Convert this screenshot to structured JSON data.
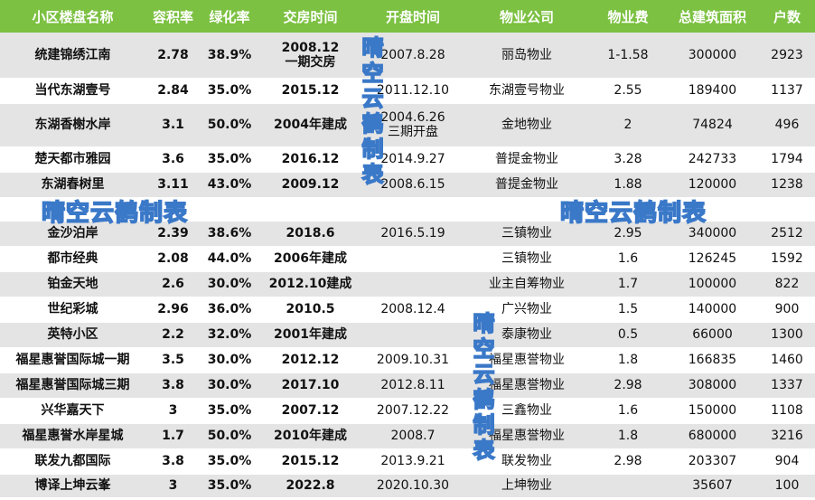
{
  "headers": [
    "小区楼盘名称",
    "容积率",
    "绿化率",
    "交房时间",
    "开盘时间",
    "物业公司",
    "物业费",
    "总建筑面积",
    "户数"
  ],
  "rows": [
    [
      "统建锦绣江南",
      "2.78",
      "38.9%",
      "2008.12\n一期交房",
      "2007.8.28",
      "丽岛物业",
      "1-1.58",
      "300000",
      "2923"
    ],
    [
      "当代东湖壹号",
      "2.84",
      "35.0%",
      "2015.12",
      "2011.12.10",
      "东湖壹号物业",
      "2.55",
      "189400",
      "1137"
    ],
    [
      "东湖香榭水岸",
      "3.1",
      "50.0%",
      "2004年建成",
      "2004.6.26\n三期开盘",
      "金地物业",
      "2",
      "74824",
      "496"
    ],
    [
      "楚天都市雅园",
      "3.6",
      "35.0%",
      "2016.12",
      "2014.9.27",
      "普提金物业",
      "3.28",
      "242733",
      "1794"
    ],
    [
      "东湖春树里",
      "3.11",
      "43.0%",
      "2009.12",
      "2008.6.15",
      "普提金物业",
      "1.88",
      "120000",
      "1238"
    ],
    [
      "",
      "",
      "",
      "",
      "",
      "",
      "",
      "",
      ""
    ],
    [
      "金沙泊岸",
      "2.39",
      "38.6%",
      "2018.6",
      "2016.5.19",
      "三镇物业",
      "2.95",
      "340000",
      "2512"
    ],
    [
      "都市经典",
      "2.08",
      "44.0%",
      "2006年建成",
      "",
      "三镇物业",
      "1.6",
      "126245",
      "1592"
    ],
    [
      "铂金天地",
      "2.6",
      "30.0%",
      "2012.10建成",
      "",
      "业主自筹物业",
      "1.7",
      "100000",
      "822"
    ],
    [
      "世纪彩城",
      "2.96",
      "36.0%",
      "2010.5",
      "2008.12.4",
      "广兴物业",
      "1.5",
      "140000",
      "900"
    ],
    [
      "英特小区",
      "2.2",
      "32.0%",
      "2001年建成",
      "",
      "泰康物业",
      "0.5",
      "66000",
      "1300"
    ],
    [
      "福星惠誉国际城一期",
      "3.5",
      "30.0%",
      "2012.12",
      "2009.10.31",
      "福星惠誉物业",
      "1.8",
      "166835",
      "1460"
    ],
    [
      "福星惠誉国际城三期",
      "3.8",
      "30.0%",
      "2017.10",
      "2012.8.11",
      "福星惠誉物业",
      "2.98",
      "308000",
      "1337"
    ],
    [
      "兴华嘉天下",
      "3",
      "35.0%",
      "2007.12",
      "2007.12.22",
      "三鑫物业",
      "1.6",
      "150000",
      "1108"
    ],
    [
      "福星惠誉水岸星城",
      "1.7",
      "50.0%",
      "2010年建成",
      "2008.7",
      "福星惠誉物业",
      "1.8",
      "680000",
      "3216"
    ],
    [
      "联发九都国际",
      "3.8",
      "35.0%",
      "2015.12",
      "2013.9.21",
      "联发物业",
      "2.98",
      "203307",
      "904"
    ],
    [
      "博译上坤云峯",
      "3",
      "35.0%",
      "2022.8",
      "2020.10.30",
      "上坤物业",
      "",
      "35607",
      "100"
    ]
  ],
  "watermark": "晴空云鹤制表",
  "colors": {
    "header_bg": "#7cc142",
    "header_text": "#ffffff",
    "row_alt": "#e4e4e4",
    "watermark_fill": "#c9ddf3",
    "watermark_stroke": "#3a78c8"
  }
}
